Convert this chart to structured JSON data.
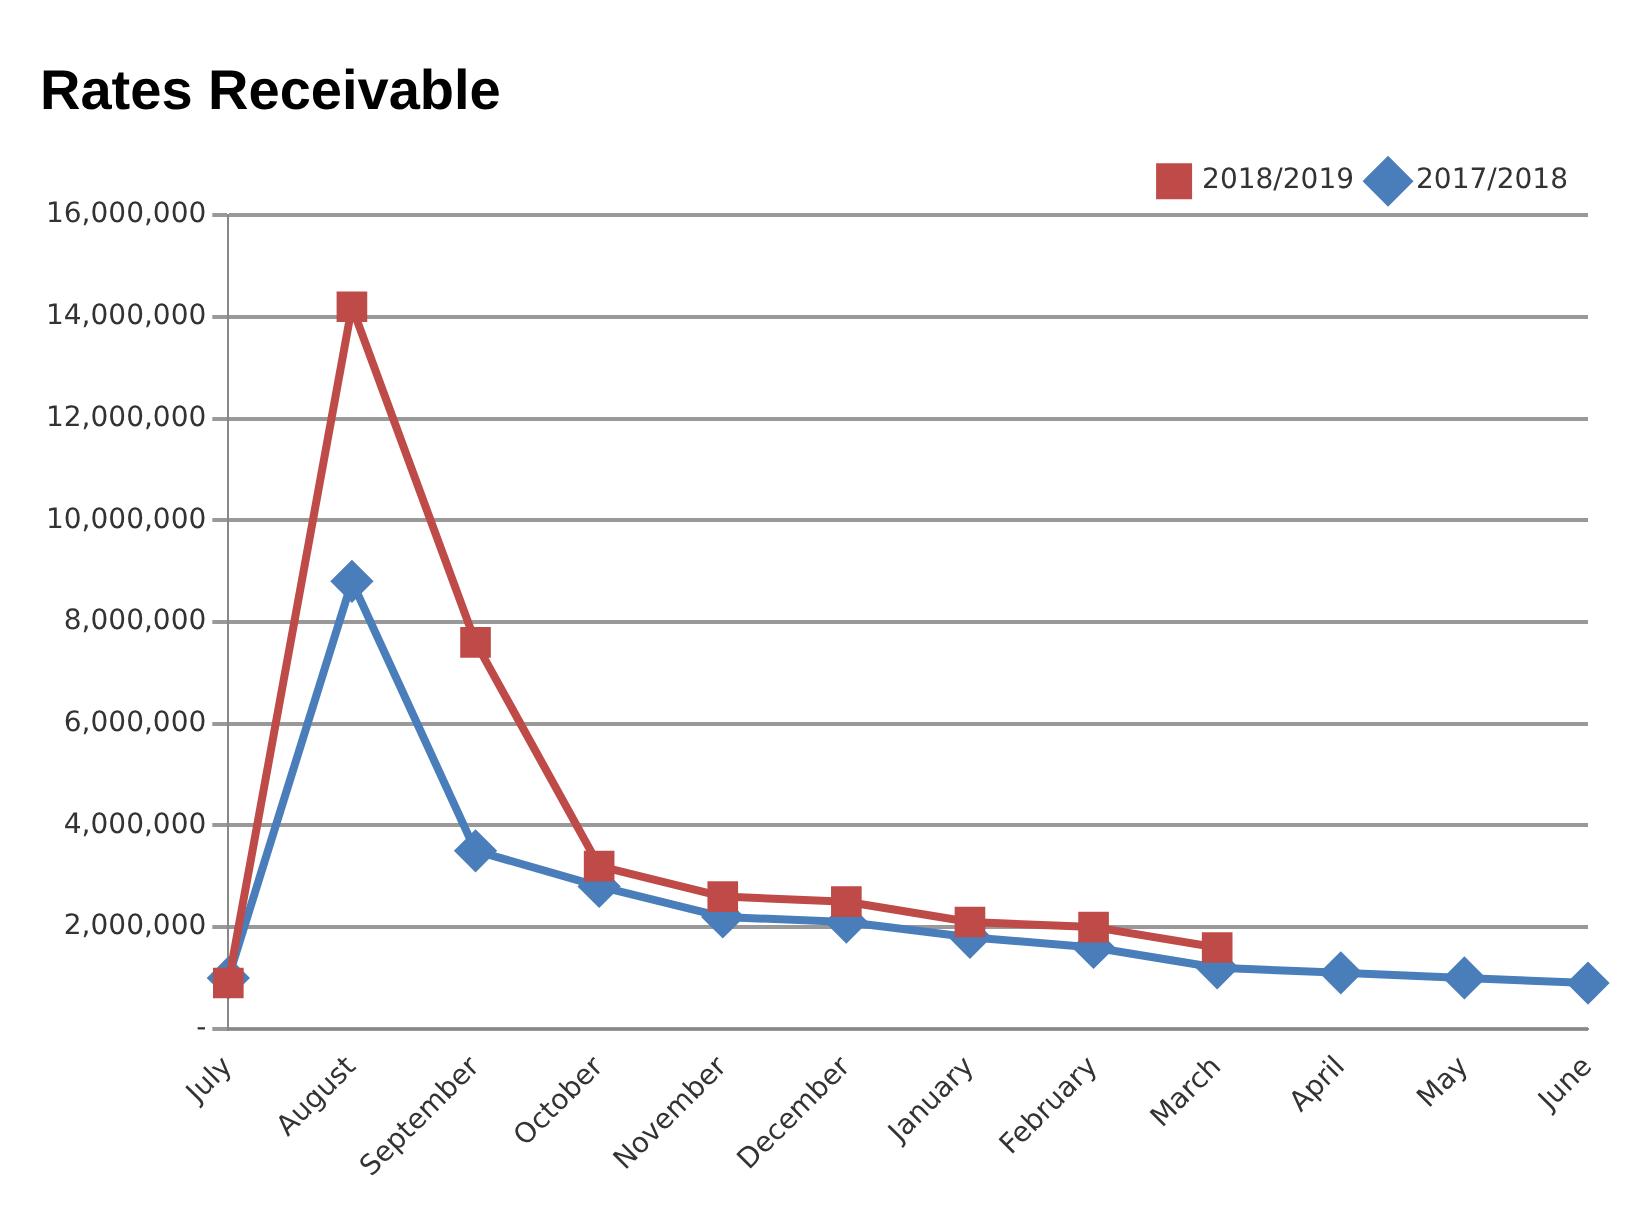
{
  "chart_data": {
    "type": "line",
    "title": "Rates Receivable",
    "categories": [
      "July",
      "August",
      "September",
      "October",
      "November",
      "December",
      "January",
      "February",
      "March",
      "April",
      "May",
      "June"
    ],
    "series": [
      {
        "name": "2017/2018",
        "color": "#4a7ebb",
        "marker": "diamond",
        "values": [
          1000000,
          8800000,
          3500000,
          2800000,
          2200000,
          2100000,
          1800000,
          1600000,
          1200000,
          1100000,
          1000000,
          900000
        ]
      },
      {
        "name": "2018/2019",
        "color": "#be4b48",
        "marker": "square",
        "values": [
          900000,
          14200000,
          7600000,
          3200000,
          2600000,
          2500000,
          2100000,
          2000000,
          1600000,
          null,
          null,
          null
        ]
      }
    ],
    "ylim": [
      0,
      16000000
    ],
    "yticks": [
      {
        "value": 0,
        "label": "-"
      },
      {
        "value": 2000000,
        "label": "2,000,000"
      },
      {
        "value": 4000000,
        "label": "4,000,000"
      },
      {
        "value": 6000000,
        "label": "6,000,000"
      },
      {
        "value": 8000000,
        "label": "8,000,000"
      },
      {
        "value": 10000000,
        "label": "10,000,000"
      },
      {
        "value": 12000000,
        "label": "12,000,000"
      },
      {
        "value": 14000000,
        "label": "14,000,000"
      },
      {
        "value": 16000000,
        "label": "16,000,000"
      }
    ],
    "grid": "y",
    "legend": "top right"
  }
}
